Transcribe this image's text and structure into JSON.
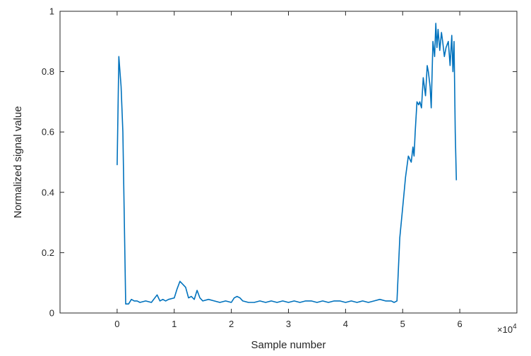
{
  "chart_data": {
    "type": "line",
    "title": "",
    "xlabel": "Sample number",
    "ylabel": "Normalized signal value",
    "xlim": [
      -1,
      7
    ],
    "ylim": [
      0,
      1
    ],
    "x_ticks": [
      0,
      1,
      2,
      3,
      4,
      5,
      6
    ],
    "x_tick_labels": [
      "0",
      "1",
      "2",
      "3",
      "4",
      "5",
      "6"
    ],
    "x_exponent_label": "×10",
    "x_exponent_power": "4",
    "y_ticks": [
      0,
      0.2,
      0.4,
      0.6,
      0.8,
      1
    ],
    "y_tick_labels": [
      "0",
      "0.2",
      "0.4",
      "0.6",
      "0.8",
      "1"
    ],
    "grid": false,
    "series_color": "#0072BD",
    "series": [
      {
        "x": [
          0,
          0.03,
          0.07,
          0.1,
          0.15,
          0.2,
          0.25,
          0.3,
          0.35,
          0.4,
          0.5,
          0.6,
          0.7,
          0.75,
          0.8,
          0.85,
          0.9,
          1.0,
          1.05,
          1.1,
          1.15,
          1.2,
          1.25,
          1.3,
          1.35,
          1.4,
          1.45,
          1.5,
          1.6,
          1.7,
          1.8,
          1.9,
          2.0,
          2.05,
          2.1,
          2.15,
          2.2,
          2.3,
          2.4,
          2.5,
          2.6,
          2.7,
          2.8,
          2.9,
          3.0,
          3.1,
          3.2,
          3.3,
          3.4,
          3.5,
          3.6,
          3.7,
          3.8,
          3.9,
          4.0,
          4.1,
          4.2,
          4.3,
          4.4,
          4.5,
          4.6,
          4.7,
          4.8,
          4.85,
          4.9,
          4.95,
          5.0,
          5.05,
          5.1,
          5.15,
          5.18,
          5.2,
          5.22,
          5.25,
          5.28,
          5.3,
          5.33,
          5.36,
          5.4,
          5.43,
          5.45,
          5.48,
          5.5,
          5.53,
          5.56,
          5.58,
          5.6,
          5.62,
          5.65,
          5.68,
          5.7,
          5.73,
          5.76,
          5.8,
          5.83,
          5.86,
          5.88,
          5.9,
          5.92,
          5.94
        ],
        "y": [
          0.49,
          0.85,
          0.75,
          0.6,
          0.03,
          0.03,
          0.045,
          0.04,
          0.04,
          0.035,
          0.04,
          0.035,
          0.06,
          0.04,
          0.045,
          0.04,
          0.045,
          0.05,
          0.08,
          0.105,
          0.095,
          0.085,
          0.05,
          0.055,
          0.045,
          0.075,
          0.05,
          0.04,
          0.045,
          0.04,
          0.035,
          0.04,
          0.035,
          0.05,
          0.055,
          0.05,
          0.04,
          0.035,
          0.035,
          0.04,
          0.035,
          0.04,
          0.035,
          0.04,
          0.035,
          0.04,
          0.035,
          0.04,
          0.04,
          0.035,
          0.04,
          0.035,
          0.04,
          0.04,
          0.035,
          0.04,
          0.035,
          0.04,
          0.035,
          0.04,
          0.045,
          0.04,
          0.04,
          0.035,
          0.04,
          0.25,
          0.35,
          0.45,
          0.52,
          0.5,
          0.55,
          0.52,
          0.6,
          0.7,
          0.69,
          0.7,
          0.68,
          0.78,
          0.72,
          0.82,
          0.8,
          0.75,
          0.68,
          0.9,
          0.85,
          0.96,
          0.88,
          0.94,
          0.87,
          0.93,
          0.9,
          0.85,
          0.88,
          0.9,
          0.82,
          0.92,
          0.8,
          0.9,
          0.6,
          0.44
        ]
      }
    ]
  }
}
